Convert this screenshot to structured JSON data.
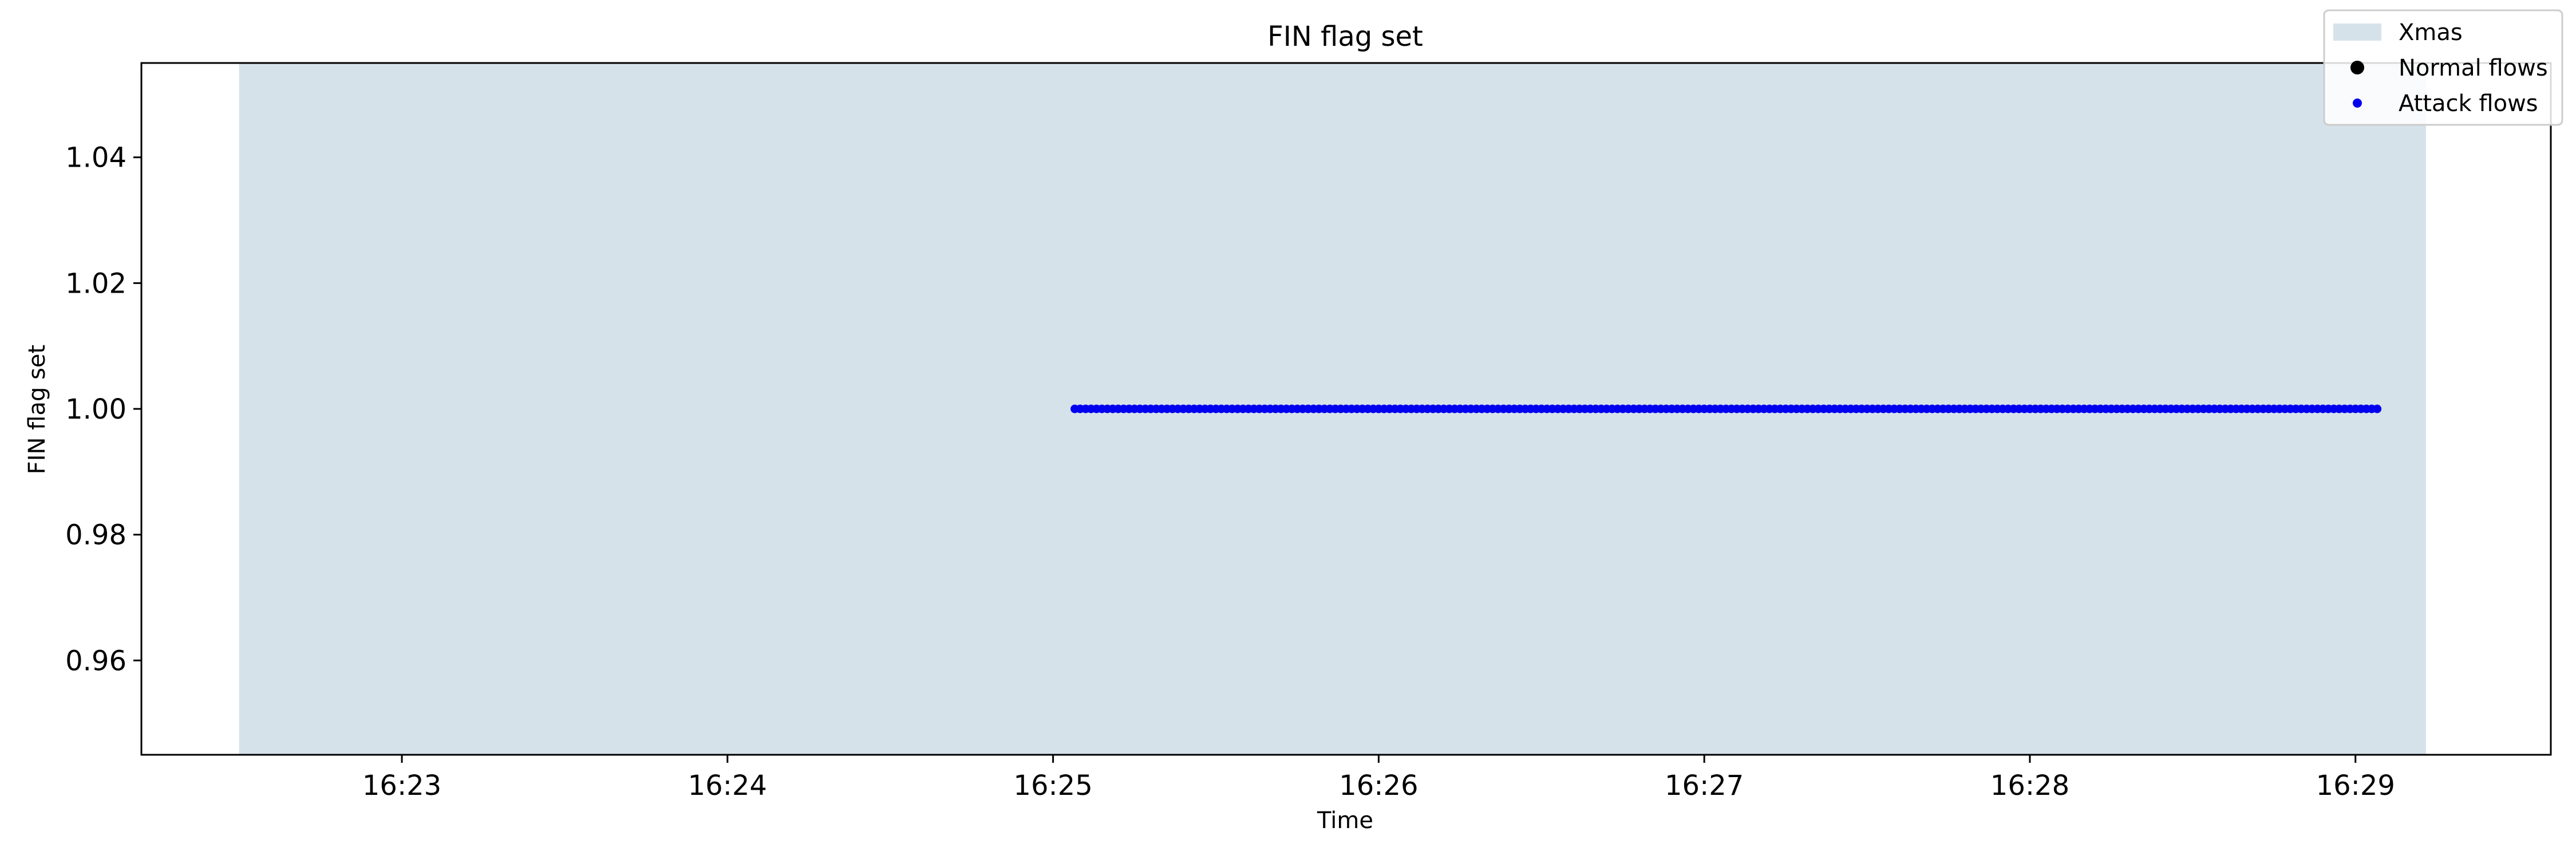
{
  "chart_data": {
    "type": "scatter",
    "title": "FIN flag set",
    "xlabel": "Time",
    "ylabel": "FIN flag set",
    "x_unit": "time of day (HH:MM)",
    "xlim": [
      "16:22:12",
      "16:29:36"
    ],
    "ylim": [
      0.945,
      1.055
    ],
    "x_ticks": [
      "16:23",
      "16:24",
      "16:25",
      "16:26",
      "16:27",
      "16:28",
      "16:29"
    ],
    "y_ticks": [
      0.96,
      0.98,
      1.0,
      1.02,
      1.04
    ],
    "y_tick_labels": [
      "0.96",
      "0.98",
      "1.00",
      "1.02",
      "1.04"
    ],
    "shaded_region": {
      "label": "Xmas",
      "start": "16:22:30",
      "end": "16:29:13",
      "color": "#d6e2ea"
    },
    "series": [
      {
        "name": "Normal flows",
        "color": "#000000",
        "x": [],
        "y": []
      },
      {
        "name": "Attack flows",
        "color": "#0000ee",
        "y_value": 1.0,
        "segments": [
          {
            "start": "16:25:04",
            "end": "16:27:10",
            "interval_s": 1
          },
          {
            "start": "16:27:11",
            "end": "16:29:04",
            "interval_s": 1
          }
        ]
      }
    ],
    "legend": {
      "placement": "top-right",
      "entries": [
        {
          "label": "Xmas",
          "kind": "patch",
          "color": "#d6e2ea"
        },
        {
          "label": "Normal flows",
          "kind": "dot",
          "color": "#000000"
        },
        {
          "label": "Attack flows",
          "kind": "dot",
          "color": "#0000ee"
        }
      ]
    },
    "grid": false
  }
}
